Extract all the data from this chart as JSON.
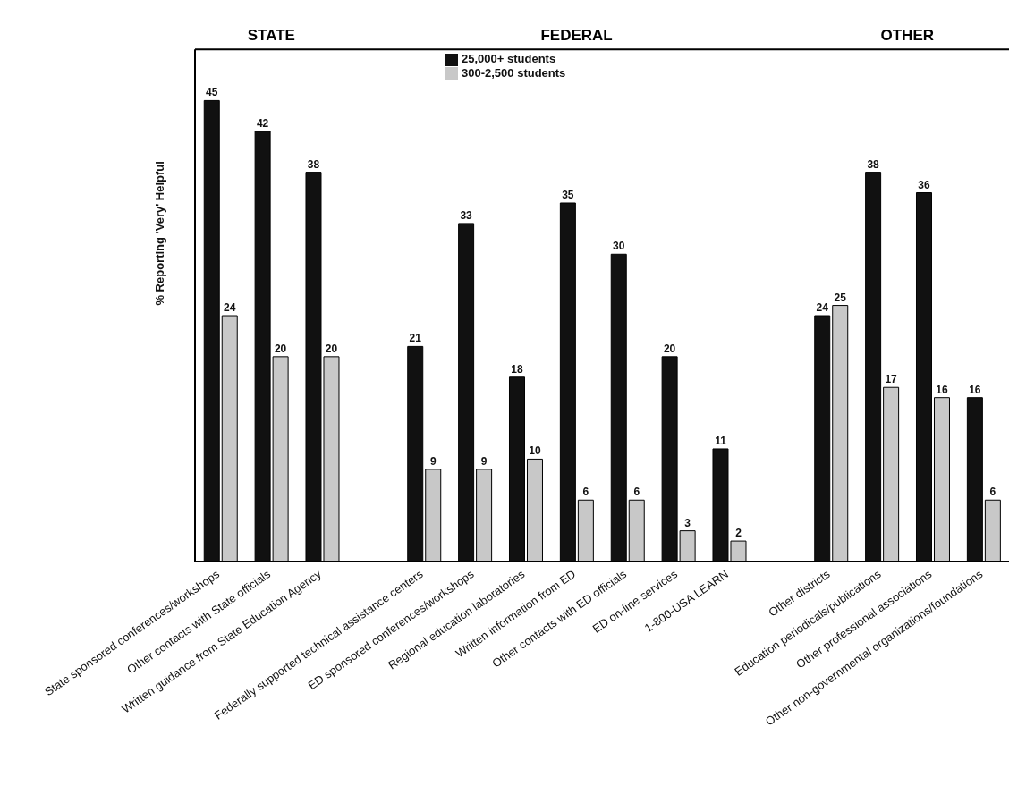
{
  "chart_data": {
    "type": "bar",
    "ylabel": "% Reporting 'Very' Helpful",
    "categories": [
      "State sponsored conferences/workshops",
      "Other contacts with State officials",
      "Written guidance from State Education Agency",
      null,
      "Federally supported technical assistance centers",
      "ED sponsored conferences/workshops",
      "Regional education laboratories",
      "Written information from ED",
      "Other contacts with ED officials",
      "ED on-line services",
      "1-800-USA LEARN",
      null,
      "Other districts",
      "Education periodicals/publications",
      "Other professional associations",
      "Other non-governmental organizations/foundations"
    ],
    "series": [
      {
        "name": "25,000+ students",
        "color": "#111111",
        "values": [
          45,
          42,
          38,
          null,
          21,
          33,
          18,
          35,
          30,
          20,
          11,
          null,
          24,
          38,
          36,
          16
        ]
      },
      {
        "name": "300-2,500 students",
        "color": "#c8c8c8",
        "values": [
          24,
          20,
          20,
          null,
          9,
          9,
          10,
          6,
          6,
          3,
          2,
          null,
          25,
          17,
          16,
          6
        ]
      }
    ],
    "annotations": [
      "STATE",
      "FEDERAL",
      "OTHER"
    ],
    "ylim": [
      0,
      50
    ],
    "tick_labels": "x",
    "data_labels": true,
    "legend": "top",
    "grid": false
  }
}
